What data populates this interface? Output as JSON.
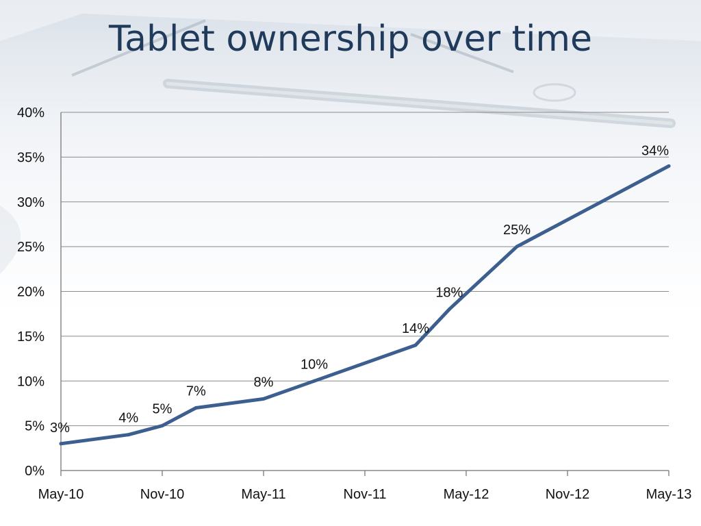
{
  "slide": {
    "title": "Tablet ownership over time"
  },
  "colors": {
    "line": "#3c5f8f",
    "grid": "#8a8a8a",
    "axis": "#888888",
    "title": "#1f3a5a"
  },
  "chart_data": {
    "type": "line",
    "title": "",
    "xlabel": "",
    "ylabel": "",
    "x_tick_labels": [
      "May-10",
      "Nov-10",
      "May-11",
      "Nov-11",
      "May-12",
      "Nov-12",
      "May-13"
    ],
    "xlim": [
      "2010-05",
      "2013-05"
    ],
    "y_tick_labels": [
      "0%",
      "5%",
      "10%",
      "15%",
      "20%",
      "25%",
      "30%",
      "35%",
      "40%"
    ],
    "ylim": [
      0,
      40
    ],
    "grid": true,
    "legend": "none",
    "series": [
      {
        "name": "",
        "points": [
          {
            "x": "2010-05",
            "y": 3,
            "label": "3%"
          },
          {
            "x": "2010-09",
            "y": 4,
            "label": "4%"
          },
          {
            "x": "2010-11",
            "y": 5,
            "label": "5%"
          },
          {
            "x": "2011-01",
            "y": 7,
            "label": "7%"
          },
          {
            "x": "2011-05",
            "y": 8,
            "label": "8%"
          },
          {
            "x": "2011-08",
            "y": 10,
            "label": "10%"
          },
          {
            "x": "2012-02",
            "y": 14,
            "label": "14%"
          },
          {
            "x": "2012-04",
            "y": 18,
            "label": "18%"
          },
          {
            "x": "2012-08",
            "y": 25,
            "label": "25%"
          },
          {
            "x": "2013-05",
            "y": 34,
            "label": "34%"
          }
        ]
      }
    ]
  }
}
